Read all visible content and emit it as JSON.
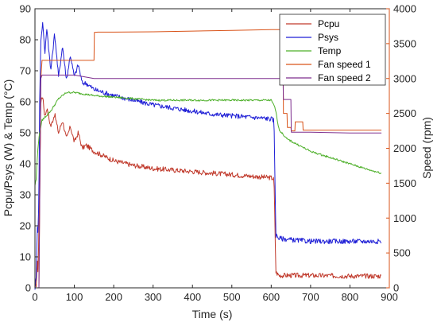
{
  "chart_data": {
    "type": "line",
    "xlabel": "Time (s)",
    "ylabel_left": "Pcpu/Psys (W) & Temp (°C)",
    "ylabel_right": "Speed (rpm)",
    "xlim": [
      0,
      900
    ],
    "ylim_left": [
      0,
      90
    ],
    "ylim_right": [
      0,
      4000
    ],
    "x_ticks": [
      0,
      100,
      200,
      300,
      400,
      500,
      600,
      700,
      800,
      900
    ],
    "y_ticks_left": [
      0,
      10,
      20,
      30,
      40,
      50,
      60,
      70,
      80,
      90
    ],
    "y_ticks_right": [
      0,
      500,
      1000,
      1500,
      2000,
      2500,
      3000,
      3500,
      4000
    ],
    "right_axis_color": "#d95319",
    "legend_position": "top-right",
    "series": [
      {
        "name": "Pcpu",
        "axis": "left",
        "color": "#c0392b",
        "noise": 0.8,
        "x": [
          0,
          3,
          6,
          8,
          10,
          12,
          15,
          20,
          25,
          30,
          40,
          50,
          60,
          70,
          80,
          90,
          100,
          110,
          120,
          130,
          150,
          200,
          250,
          300,
          350,
          400,
          450,
          500,
          550,
          600,
          607,
          612,
          620,
          650,
          700,
          800,
          880
        ],
        "y": [
          0,
          1,
          8,
          5,
          20,
          35,
          60,
          62,
          55,
          58,
          52,
          56,
          50,
          54,
          48,
          52,
          47,
          50,
          45,
          46,
          44,
          41,
          39.5,
          38.5,
          38,
          37.5,
          37,
          36.5,
          36,
          35.5,
          35,
          5,
          4,
          4,
          4,
          3.8,
          3.8
        ]
      },
      {
        "name": "Psys",
        "axis": "left",
        "color": "#1f1fd6",
        "noise": 0.8,
        "x": [
          0,
          3,
          6,
          8,
          10,
          12,
          15,
          20,
          25,
          30,
          40,
          50,
          60,
          70,
          80,
          90,
          100,
          110,
          120,
          130,
          150,
          200,
          250,
          300,
          350,
          400,
          450,
          500,
          550,
          600,
          607,
          612,
          620,
          650,
          700,
          800,
          880
        ],
        "y": [
          0,
          3,
          20,
          18,
          30,
          60,
          80,
          86,
          75,
          84,
          70,
          82,
          68,
          78,
          67,
          75,
          68,
          72,
          66,
          66,
          64,
          62,
          60.5,
          59,
          58,
          57,
          56,
          55.5,
          55,
          54.5,
          54,
          17,
          16,
          15.5,
          15,
          15,
          15
        ]
      },
      {
        "name": "Temp",
        "axis": "left",
        "color": "#4caf28",
        "noise": 0.3,
        "x": [
          0,
          3,
          5,
          8,
          12,
          18,
          25,
          40,
          50,
          60,
          80,
          100,
          150,
          200,
          250,
          300,
          350,
          400,
          450,
          500,
          550,
          600,
          610,
          620,
          640,
          670,
          700,
          750,
          800,
          850,
          880
        ],
        "y": [
          33,
          35,
          40,
          46,
          50,
          54,
          55,
          57,
          59,
          61,
          63,
          63,
          62,
          61.5,
          61,
          60.5,
          60.5,
          60.5,
          60.5,
          60.5,
          60.5,
          60.5,
          58,
          51,
          48,
          46,
          44,
          42,
          40,
          38,
          37
        ]
      },
      {
        "name": "Fan speed 1",
        "axis": "right",
        "color": "#d95319",
        "noise": 0,
        "x": [
          0,
          10,
          15,
          18,
          25,
          30,
          40,
          60,
          100,
          150,
          151,
          160,
          200,
          300,
          400,
          500,
          600,
          630,
          631,
          640,
          641,
          650,
          651,
          660,
          661,
          680,
          681,
          700,
          800,
          880
        ],
        "y": [
          0,
          0,
          3000,
          3260,
          3260,
          3260,
          3260,
          3260,
          3260,
          3260,
          3660,
          3665,
          3665,
          3670,
          3680,
          3690,
          3700,
          3700,
          2500,
          2500,
          2300,
          2300,
          2250,
          2250,
          2380,
          2380,
          2260,
          2260,
          2260,
          2260
        ]
      },
      {
        "name": "Fan speed 2",
        "axis": "right",
        "color": "#7e2f8e",
        "noise": 0,
        "x": [
          0,
          10,
          15,
          18,
          25,
          60,
          100,
          150,
          200,
          300,
          400,
          500,
          600,
          630,
          631,
          650,
          651,
          700,
          800,
          880
        ],
        "y": [
          0,
          0,
          3000,
          3050,
          3050,
          3050,
          3050,
          3000,
          3000,
          3000,
          3000,
          3000,
          3000,
          3000,
          2700,
          2700,
          2230,
          2230,
          2220,
          2220
        ]
      }
    ]
  }
}
